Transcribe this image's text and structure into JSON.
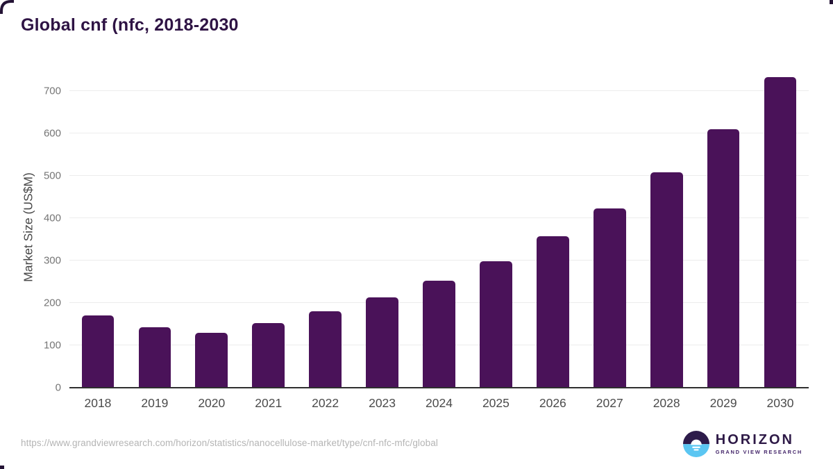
{
  "header": {
    "title": "Global cnf (nfc, 2018-2030"
  },
  "chart_data": {
    "type": "bar",
    "title": "Global cnf (nfc, 2018-2030",
    "categories": [
      "2018",
      "2019",
      "2020",
      "2021",
      "2022",
      "2023",
      "2024",
      "2025",
      "2026",
      "2027",
      "2028",
      "2029",
      "2030"
    ],
    "values": [
      170,
      142,
      129,
      152,
      180,
      213,
      253,
      299,
      357,
      424,
      508,
      610,
      734
    ],
    "xlabel": "",
    "ylabel": "Market Size (US$M)",
    "ylim": [
      0,
      735
    ],
    "yticks": [
      0,
      100,
      200,
      300,
      400,
      500,
      600,
      700
    ],
    "gridlines": [
      100,
      200,
      300,
      400,
      500,
      600,
      700
    ],
    "grid": "horizontal",
    "legend": "none",
    "bar_color": "#4a1259"
  },
  "footer": {
    "source_url": "https://www.grandviewresearch.com/horizon/statistics/nanocellulose-market/type/cnf-nfc-mfc/global",
    "logo": {
      "name": "HORIZON",
      "tagline": "GRAND VIEW RESEARCH"
    }
  },
  "colors": {
    "bar": "#4a1259",
    "title_text": "#2e1344",
    "gridline": "#ececec",
    "axis_line": "#2f2f2f",
    "tick_text": "#757575",
    "xlabel_text": "#4b4b4b",
    "url_text": "#b4b4b4",
    "logo_dark": "#2d1b4a",
    "logo_blue": "#5bc6f2",
    "frame_corner": "#241335"
  }
}
